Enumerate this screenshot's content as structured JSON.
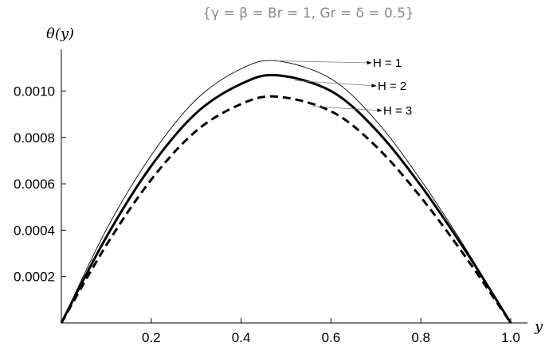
{
  "chart_data": {
    "type": "line",
    "title": "",
    "subtitle": "{γ = β = Br = 1, Gr = δ = 0.5}",
    "xlabel": "y",
    "ylabel": "θ(y)",
    "xlim": [
      0,
      1.0
    ],
    "ylim": [
      0,
      0.00118
    ],
    "x_ticks": [
      0.2,
      0.4,
      0.6,
      0.8,
      1.0
    ],
    "x_tick_labels": [
      "0.2",
      "0.4",
      "0.6",
      "0.8",
      "1.0"
    ],
    "y_ticks": [
      0.0002,
      0.0004,
      0.0006,
      0.0008,
      0.001
    ],
    "y_tick_labels": [
      "0.0002",
      "0.0004",
      "0.0006",
      "0.0008",
      "0.0010"
    ],
    "grid": false,
    "legend": "inline-annotations",
    "series": [
      {
        "name": "H = 1",
        "style": "thin-solid",
        "x": [
          0,
          0.1,
          0.2,
          0.3,
          0.4,
          0.48,
          0.6,
          0.7,
          0.8,
          0.9,
          1.0
        ],
        "values": [
          0,
          0.000402,
          0.000723,
          0.000963,
          0.001096,
          0.00113,
          0.001053,
          0.000873,
          0.000616,
          0.00032,
          0
        ]
      },
      {
        "name": "H = 2",
        "style": "thick-solid",
        "x": [
          0,
          0.1,
          0.2,
          0.3,
          0.4,
          0.48,
          0.6,
          0.7,
          0.8,
          0.9,
          1.0
        ],
        "values": [
          0,
          0.00037,
          0.000677,
          0.000905,
          0.001031,
          0.001068,
          0.001,
          0.000833,
          0.000592,
          0.000309,
          0
        ]
      },
      {
        "name": "H = 3",
        "style": "thick-dashed",
        "x": [
          0,
          0.1,
          0.2,
          0.3,
          0.4,
          0.48,
          0.6,
          0.7,
          0.8,
          0.9,
          1.0
        ],
        "values": [
          0,
          0.000335,
          0.000618,
          0.000828,
          0.000944,
          0.000976,
          0.000913,
          0.000762,
          0.000542,
          0.000283,
          0
        ]
      }
    ],
    "annotations": [
      {
        "text": "H = 1",
        "series": 0,
        "at_x": 0.48
      },
      {
        "text": "H = 2",
        "series": 1,
        "at_x": 0.52
      },
      {
        "text": "H = 3",
        "series": 2,
        "at_x": 0.56
      }
    ]
  }
}
